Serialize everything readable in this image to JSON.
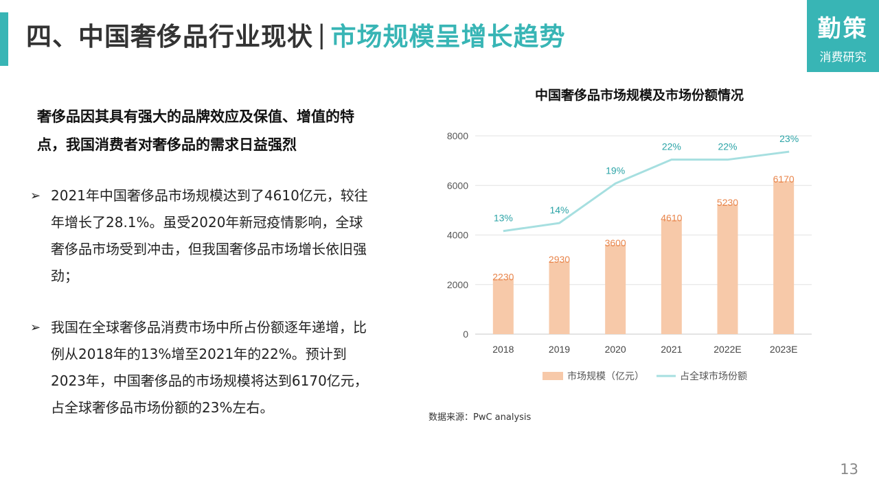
{
  "header": {
    "title_main": "四、中国奢侈品行业现状",
    "separator": "|",
    "title_sub": "市场规模呈增长趋势"
  },
  "brand": {
    "name": "勤策",
    "tagline": "消费研究"
  },
  "left": {
    "lead": "奢侈品因其具有强大的品牌效应及保值、增值的特点，我国消费者对奢侈品的需求日益强烈",
    "bullet_marker": "➢",
    "bullets": [
      "2021年中国奢侈品市场规模达到了4610亿元，较往年增长了28.1%。虽受2020年新冠疫情影响，全球奢侈品市场受到冲击，但我国奢侈品市场增长依旧强劲；",
      "我国在全球奢侈品消费市场中所占份额逐年递增，比例从2018年的13%增至2021年的22%。预计到2023年，中国奢侈品的市场规模将达到6170亿元，占全球奢侈品市场份额的23%左右。"
    ]
  },
  "chart_data": {
    "type": "bar",
    "title": "中国奢侈品市场规模及市场份额情况",
    "categories": [
      "2018",
      "2019",
      "2020",
      "2021",
      "2022E",
      "2023E"
    ],
    "y_ticks": [
      "0",
      "2000",
      "4000",
      "6000",
      "8000"
    ],
    "ylim": [
      0,
      8000
    ],
    "grid": true,
    "legend_position": "bottom",
    "series": [
      {
        "name": "市场规模（亿元）",
        "type": "bar",
        "values": [
          2230,
          2930,
          3600,
          4610,
          5230,
          6170
        ],
        "labels": [
          "2230",
          "2930",
          "3600",
          "4610",
          "5230",
          "6170"
        ],
        "color": "#f7c9a9",
        "label_color": "#e8844a"
      },
      {
        "name": "占全球市场份额",
        "type": "line",
        "values": [
          13,
          14,
          19,
          22,
          22,
          23
        ],
        "labels": [
          "13%",
          "14%",
          "19%",
          "22%",
          "22%",
          "23%"
        ],
        "color": "#a6dfe0",
        "label_color": "#2aa3a6"
      }
    ]
  },
  "source": "数据来源：PwC analysis",
  "page_number": "13"
}
